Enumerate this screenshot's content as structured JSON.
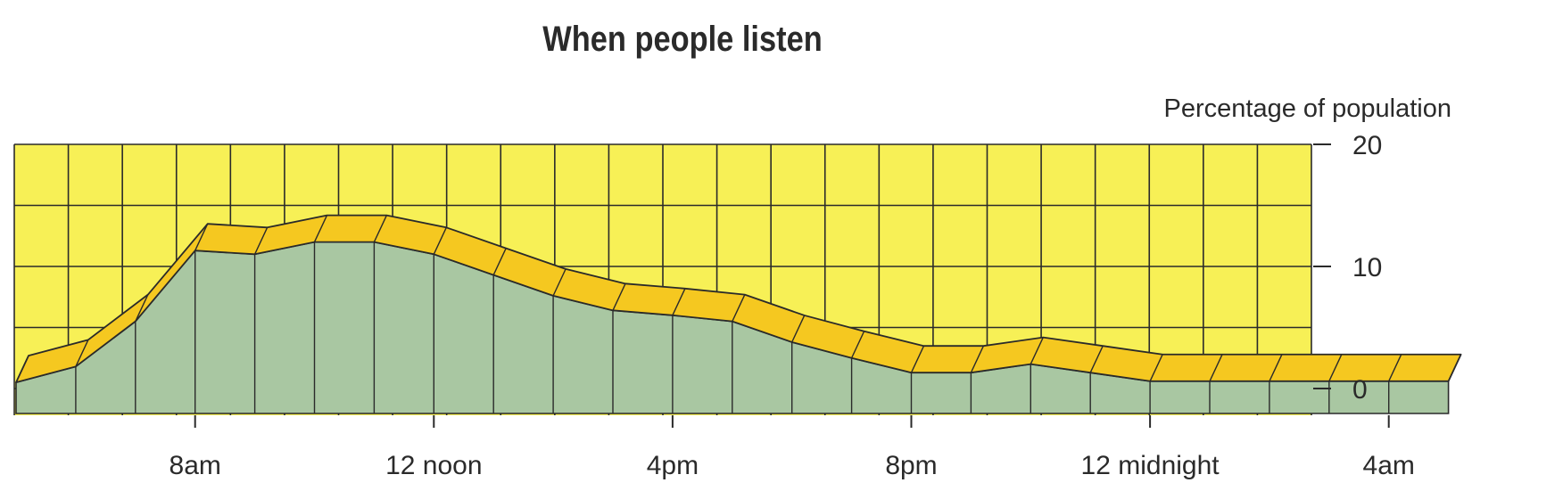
{
  "chart_data": {
    "type": "area",
    "title": "When people listen",
    "ylabel": "Percentage of population",
    "yticks": [
      "20",
      "10",
      "0"
    ],
    "ylim": [
      0,
      20
    ],
    "xticks": [
      "8am",
      "12 noon",
      "4pm",
      "8pm",
      "12 midnight",
      "4am"
    ],
    "hours": [
      "5am",
      "6am",
      "7am",
      "8am",
      "9am",
      "10am",
      "11am",
      "12 noon",
      "1pm",
      "2pm",
      "3pm",
      "4pm",
      "5pm",
      "6pm",
      "7pm",
      "8pm",
      "9pm",
      "10pm",
      "11pm",
      "12 midnight",
      "1am",
      "2am",
      "3am",
      "4am",
      "4:30am"
    ],
    "series": [
      {
        "values": [
          0.5,
          1.8,
          5.5,
          11.3,
          11.0,
          12.0,
          12.0,
          11.0,
          9.3,
          7.6,
          6.4,
          6.0,
          5.5,
          3.8,
          2.5,
          1.3,
          1.3,
          2.0,
          1.3,
          0.6,
          0.6,
          0.6,
          0.6,
          0.6,
          0.6
        ]
      }
    ],
    "grid": true,
    "colors": {
      "background": "#f7f056",
      "area_top": "#f5c820",
      "area_side": "#a9c7a2",
      "grid": "#2a2a2a"
    }
  }
}
